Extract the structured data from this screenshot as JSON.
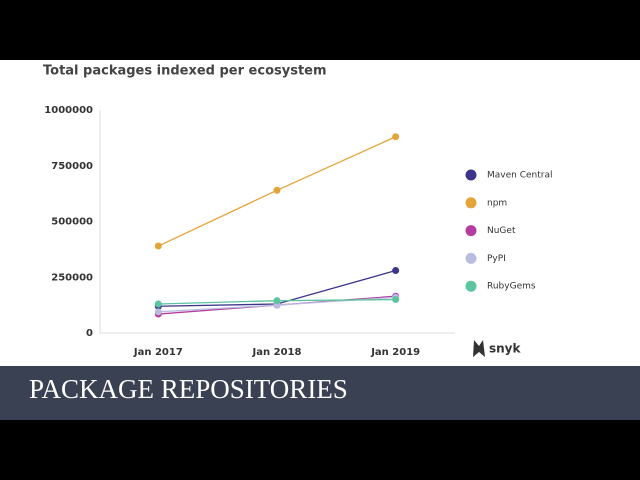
{
  "chart_data": {
    "type": "line",
    "title": "Total packages indexed per ecosystem",
    "categories": [
      "Jan 2017",
      "Jan 2018",
      "Jan 2019"
    ],
    "series": [
      {
        "name": "Maven Central",
        "color": "#3d358c",
        "values": [
          120000,
          130000,
          280000
        ]
      },
      {
        "name": "npm",
        "color": "#e3a43a",
        "values": [
          390000,
          640000,
          880000
        ]
      },
      {
        "name": "NuGet",
        "color": "#b53c9f",
        "values": [
          85000,
          125000,
          165000
        ]
      },
      {
        "name": "PyPI",
        "color": "#b8bde0",
        "values": [
          95000,
          125000,
          160000
        ]
      },
      {
        "name": "RubyGems",
        "color": "#5cc49f",
        "values": [
          130000,
          145000,
          150000
        ]
      }
    ],
    "ylim": [
      0,
      1000000
    ],
    "yticks": [
      0,
      250000,
      500000,
      750000,
      1000000
    ],
    "grid": false,
    "legend": "right"
  },
  "logo": "snyk",
  "banner": "PACKAGE REPOSITORIES"
}
